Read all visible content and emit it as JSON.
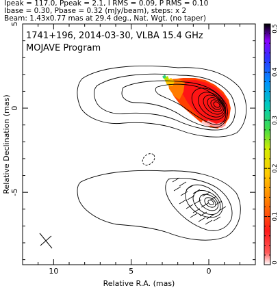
{
  "header": {
    "line1": "Ipeak = 117.0, Ppeak = 2.1, I RMS = 0.09, P RMS = 0.10",
    "line2": "Ibase = 0.30, Pbase = 0.32 (mJy/beam), steps: x 2",
    "line3": "Beam: 1.43x0.77 mas at 29.4 deg., Nat. Wgt. (no taper)"
  },
  "chart_data": {
    "type": "contour",
    "annotation_line1": "1741+196, 2014-03-30, VLBA 15.4 GHz",
    "annotation_line2": "MOJAVE Program",
    "xlabel": "Relative R.A. (mas)",
    "ylabel": "Relative Declination (mas)",
    "xlim": [
      12,
      -3
    ],
    "ylim": [
      -9.3,
      5
    ],
    "x_ticks": [
      10,
      5,
      0
    ],
    "y_ticks": [
      5,
      0,
      -5
    ],
    "colorbar": {
      "range": [
        0,
        0.5
      ],
      "ticks": [
        "0",
        "0.1",
        "0.2",
        "0.3",
        "0.4",
        "0.5"
      ]
    },
    "beam": {
      "major_mas": 1.43,
      "minor_mas": 0.77,
      "pa_deg": 29.4
    }
  }
}
